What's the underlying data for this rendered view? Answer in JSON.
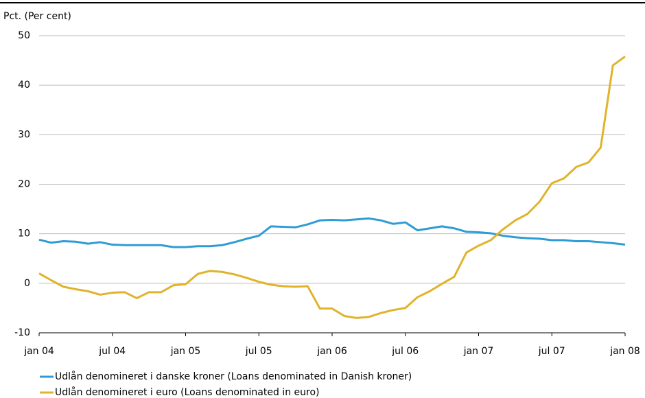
{
  "chart_data": {
    "type": "line",
    "y_label": "Pct. (Per cent)",
    "categories": [
      "jan 04",
      null,
      null,
      null,
      null,
      null,
      "jul 04",
      null,
      null,
      null,
      null,
      null,
      "jan 05",
      null,
      null,
      null,
      null,
      null,
      "jul 05",
      null,
      null,
      null,
      null,
      null,
      "jan 06",
      null,
      null,
      null,
      null,
      null,
      "jul 06",
      null,
      null,
      null,
      null,
      null,
      "jan 07",
      null,
      null,
      null,
      null,
      null,
      "jul 07",
      null,
      null,
      null,
      null,
      null,
      "jan 08"
    ],
    "series": [
      {
        "name": "Udlån denomineret i danske kroner (Loans denominated in Danish kroner)",
        "color": "#2e9bd6",
        "values": [
          8.8,
          8.2,
          8.5,
          8.4,
          8.0,
          8.3,
          7.8,
          7.7,
          7.7,
          7.7,
          7.7,
          7.3,
          7.3,
          7.5,
          7.5,
          7.7,
          8.3,
          9.0,
          9.6,
          11.5,
          11.4,
          11.3,
          11.9,
          12.7,
          12.8,
          12.7,
          12.9,
          13.1,
          12.7,
          12.0,
          12.3,
          10.7,
          11.1,
          11.5,
          11.1,
          10.4,
          10.3,
          10.1,
          9.6,
          9.3,
          9.1,
          9.0,
          8.7,
          8.7,
          8.5,
          8.5,
          8.3,
          8.1,
          7.8
        ]
      },
      {
        "name": "Udlån denomineret i euro (Loans denominated in euro)",
        "color": "#e0b32a",
        "values": [
          2.0,
          0.6,
          -0.7,
          -1.2,
          -1.6,
          -2.3,
          -1.9,
          -1.8,
          -3.0,
          -1.8,
          -1.8,
          -0.4,
          -0.2,
          1.9,
          2.5,
          2.3,
          1.8,
          1.1,
          0.3,
          -0.3,
          -0.6,
          -0.7,
          -0.6,
          -5.1,
          -5.1,
          -6.6,
          -7.0,
          -6.8,
          -6.0,
          -5.4,
          -5.0,
          -2.8,
          -1.6,
          -0.1,
          1.3,
          6.2,
          7.6,
          8.7,
          10.9,
          12.7,
          14.0,
          16.5,
          20.2,
          21.2,
          23.5,
          24.4,
          27.4,
          44.0,
          45.8
        ]
      }
    ],
    "ylim": [
      -10,
      50
    ],
    "yticks": [
      -10,
      0,
      10,
      20,
      30,
      40,
      50
    ],
    "grid": true,
    "legend": "bottom-left"
  }
}
